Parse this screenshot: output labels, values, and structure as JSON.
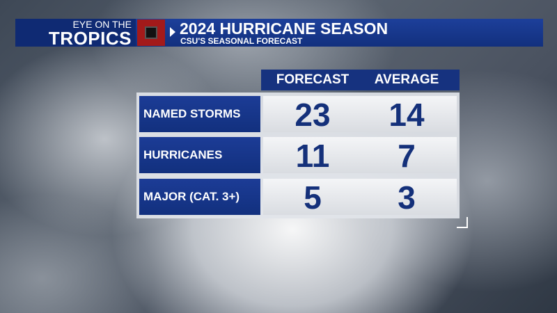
{
  "header": {
    "kicker_top": "EYE ON THE",
    "kicker_bottom": "TROPICS",
    "title": "2024 HURRICANE SEASON",
    "subtitle": "CSU'S SEASONAL FORECAST"
  },
  "table": {
    "columns": [
      "FORECAST",
      "AVERAGE"
    ],
    "rows": [
      [
        "NAMED STORMS",
        23,
        14
      ],
      [
        "HURRICANES",
        11,
        7
      ],
      [
        "MAJOR (CAT. 3+)",
        5,
        3
      ]
    ]
  }
}
